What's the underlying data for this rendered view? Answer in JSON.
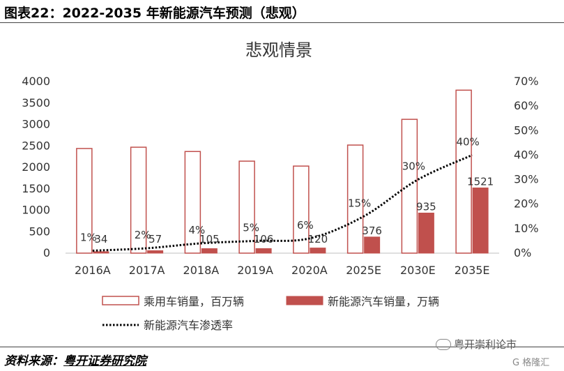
{
  "header": {
    "title": "图表22：2022-2035 年新能源汽车预测（悲观）"
  },
  "footer": {
    "prefix": "资料来源：",
    "source": "粤开证券研究院"
  },
  "watermark": {
    "text": "粤开崇利论市",
    "sub": "G 格隆汇"
  },
  "chart_data": {
    "type": "bar",
    "title": "悲观情景",
    "categories": [
      "2016A",
      "2017A",
      "2018A",
      "2019A",
      "2020A",
      "2025E",
      "2030E",
      "2035E"
    ],
    "ylim": [
      0,
      4000
    ],
    "yticks": [
      0,
      500,
      1000,
      1500,
      2000,
      2500,
      3000,
      3500,
      4000
    ],
    "y2lim": [
      0,
      70
    ],
    "y2ticks": [
      "0%",
      "10%",
      "20%",
      "30%",
      "40%",
      "50%",
      "60%",
      "70%"
    ],
    "series": [
      {
        "name": "乘用车销量，百万辆",
        "type": "bar",
        "values": [
          2440,
          2470,
          2370,
          2145,
          2030,
          2520,
          3120,
          3800
        ],
        "color": "#c0504d",
        "fill": "#ffffff"
      },
      {
        "name": "新能源汽车销量，万辆",
        "type": "bar",
        "values": [
          34,
          57,
          105,
          106,
          120,
          376,
          935,
          1521
        ],
        "color": "#c0504d",
        "fill": "#c0504d"
      },
      {
        "name": "新能源汽车渗透率",
        "type": "line",
        "axis": "right",
        "values": [
          1,
          2,
          4,
          5,
          6,
          15,
          30,
          40
        ],
        "labels": [
          "1%",
          "2%",
          "4%",
          "5%",
          "6%",
          "15%",
          "30%",
          "40%"
        ],
        "color": "#000000"
      }
    ],
    "legend_position": "bottom",
    "grid": false
  }
}
